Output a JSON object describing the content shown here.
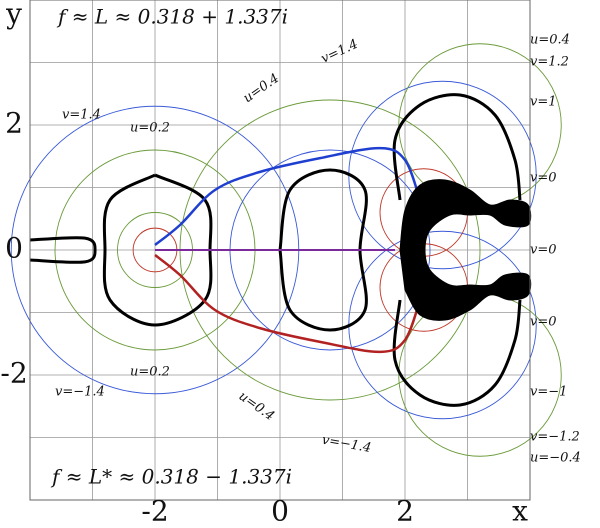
{
  "chart_data": {
    "type": "contour",
    "annotations": [
      "f ≈ L ≈ 0.318 + 1.337i",
      "f ≈ L* ≈ 0.318 − 1.337i"
    ],
    "x_label": "x",
    "y_label": "y",
    "xlim": [
      -4,
      4
    ],
    "ylim": [
      -4,
      4
    ],
    "xticks": [
      -2,
      0,
      2
    ],
    "yticks": [
      -2,
      0,
      2
    ],
    "grid_x": [
      -4,
      -3,
      -2,
      -1,
      0,
      1,
      2,
      3,
      4
    ],
    "grid_y": [
      -4,
      -3,
      -2,
      -1,
      0,
      1,
      2,
      3,
      4
    ],
    "level_labels": [
      "u=0.4",
      "v=1.2",
      "v=1",
      "v=0",
      "v=0",
      "v=0",
      "v=−1",
      "v=−1.2",
      "u=−0.4",
      "v=1.4",
      "u=0.2",
      "u=0.4",
      "v=1.4",
      "u=0.2",
      "v=−1.4",
      "u=0.4",
      "v=−1.4"
    ],
    "circles": [
      {
        "color": "#6a9a3a",
        "cx": -2,
        "cy": 0,
        "r": 1.6
      },
      {
        "color": "#3a5ad8",
        "cx": -2,
        "cy": 0,
        "r": 2.3
      },
      {
        "color": "#6a9a3a",
        "cx": -2,
        "cy": 0,
        "r": 0.6
      },
      {
        "color": "#c0392b",
        "cx": -2,
        "cy": 0,
        "r": 0.35
      },
      {
        "color": "#3a5ad8",
        "cx": 0.8,
        "cy": 0,
        "r": 1.6
      },
      {
        "color": "#6a9a3a",
        "cx": 0.8,
        "cy": 0,
        "r": 2.4
      },
      {
        "color": "#3a5ad8",
        "cx": 2.6,
        "cy": 1.2,
        "r": 1.5
      },
      {
        "color": "#3a5ad8",
        "cx": 2.6,
        "cy": -1.2,
        "r": 1.5
      },
      {
        "color": "#6a9a3a",
        "cx": 3.2,
        "cy": 2.0,
        "r": 1.3
      },
      {
        "color": "#6a9a3a",
        "cx": 3.2,
        "cy": -2.0,
        "r": 1.3
      },
      {
        "color": "#c0392b",
        "cx": 2.3,
        "cy": 0.6,
        "r": 0.7
      },
      {
        "color": "#c0392b",
        "cx": 2.3,
        "cy": -0.6,
        "r": 0.7
      }
    ],
    "curves": [
      {
        "color": "#000000",
        "width": 3,
        "x": [
          -2,
          -1.2,
          -1.12,
          -1.2,
          -2,
          -2.72,
          -2.8,
          -2.72,
          -2
        ],
        "y": [
          1.2,
          0.8,
          0,
          -0.8,
          -1.2,
          -0.8,
          0,
          0.8,
          1.2
        ]
      },
      {
        "color": "#000000",
        "width": 3,
        "x": [
          -4,
          -3.12,
          -2.96,
          -3.12,
          -4
        ],
        "y": [
          0.16,
          0.19,
          0,
          -0.19,
          -0.16
        ]
      },
      {
        "color": "#000000",
        "width": 3,
        "x": [
          0,
          0.16,
          0.8,
          1.36,
          1.28,
          1.36,
          0.8,
          0.16,
          0
        ],
        "y": [
          0,
          0.96,
          1.28,
          0.96,
          0,
          -0.96,
          -1.28,
          -0.96,
          0
        ]
      },
      {
        "color": "#000000",
        "width": 3,
        "x": [
          1.92,
          1.84,
          2.24,
          2.88,
          3.44,
          3.76,
          3.84
        ],
        "y": [
          0.8,
          1.76,
          2.32,
          2.48,
          2.16,
          1.44,
          0.8
        ]
      },
      {
        "color": "#000000",
        "width": 3,
        "x": [
          1.92,
          1.84,
          2.24,
          2.88,
          3.44,
          3.76,
          3.84
        ],
        "y": [
          -0.8,
          -1.76,
          -2.32,
          -2.48,
          -2.16,
          -1.44,
          -0.8
        ]
      },
      {
        "color": "#1f3fd0",
        "width": 2.5,
        "x": [
          -2,
          -1.6,
          -1.04,
          -0.32,
          0.64,
          1.6,
          2.0,
          2.24
        ],
        "y": [
          0.08,
          0.4,
          0.96,
          1.25,
          1.47,
          1.63,
          1.44,
          0.8
        ]
      },
      {
        "color": "#b22222",
        "width": 2.5,
        "x": [
          -2,
          -1.6,
          -1.04,
          -0.32,
          0.64,
          1.6,
          2.0,
          2.24
        ],
        "y": [
          -0.08,
          -0.4,
          -0.96,
          -1.25,
          -1.47,
          -1.63,
          -1.44,
          -0.8
        ]
      },
      {
        "color": "#7a2a9a",
        "width": 2,
        "x": [
          -2,
          -1,
          0,
          1,
          1.84
        ],
        "y": [
          0,
          0,
          0,
          0,
          0
        ]
      },
      {
        "color": "#000000",
        "width": 1,
        "fill": true,
        "x": [
          1.92,
          2.0,
          2.24,
          2.64,
          3.04,
          3.36,
          3.68,
          3.97,
          3.97,
          3.6,
          3.36,
          3.04,
          2.72,
          2.4,
          2.32,
          2.4,
          2.72,
          3.04,
          3.36,
          3.6,
          3.97,
          3.97,
          3.68,
          3.36,
          3.04,
          2.64,
          2.24,
          2.0
        ],
        "y": [
          0,
          0.64,
          1.04,
          1.12,
          0.96,
          0.72,
          0.8,
          0.72,
          0.4,
          0.4,
          0.56,
          0.56,
          0.56,
          0.32,
          0,
          -0.32,
          -0.56,
          -0.56,
          -0.56,
          -0.4,
          -0.4,
          -0.72,
          -0.8,
          -0.72,
          -0.96,
          -1.12,
          -1.04,
          -0.64
        ]
      }
    ]
  }
}
